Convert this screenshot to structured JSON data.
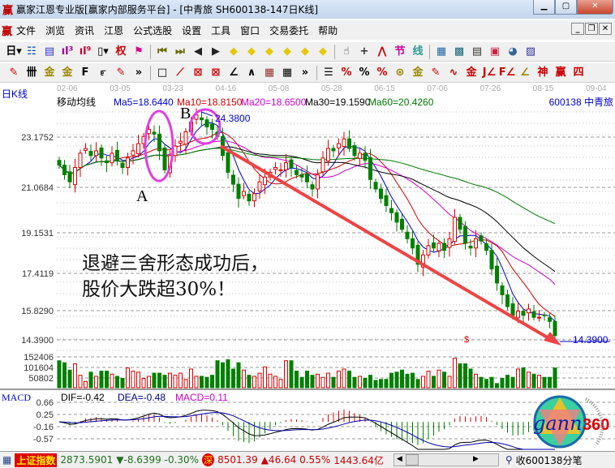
{
  "window": {
    "title": "赢家江恩专业版[赢家内部服务平台] - [中青旅  SH600138-147日K线]",
    "logo": "赢"
  },
  "menu": {
    "logo": "赢",
    "items": [
      "文件",
      "浏览",
      "资讯",
      "江恩",
      "公式选股",
      "设置",
      "工具",
      "窗口",
      "交易委托",
      "帮助"
    ]
  },
  "toolbar1": [
    {
      "name": "period-day-icon",
      "g": "日▾",
      "c": "#000"
    },
    {
      "name": "chart-type-icon",
      "g": "☷",
      "c": "#0044cc"
    },
    {
      "name": "document-icon",
      "g": "▤",
      "c": "#3333cc"
    },
    {
      "name": "indicator-3-icon",
      "g": "ıl³",
      "c": "#990099"
    },
    {
      "name": "indicator-9-icon",
      "g": "ıl⁹",
      "c": "#cc0033"
    },
    {
      "name": "candle-type-icon",
      "g": "▯▾",
      "c": "#000"
    },
    {
      "name": "rights-icon",
      "g": "权",
      "c": "#cc0000"
    },
    {
      "name": "flag-icon",
      "g": "⚑",
      "c": "#e0008a"
    },
    {
      "sep": true
    },
    {
      "name": "first-icon",
      "g": "⏮",
      "c": "#6b6b00"
    },
    {
      "name": "last-icon",
      "g": "⏭",
      "c": "#6b6b00"
    },
    {
      "name": "left-icon",
      "g": "◀",
      "c": "#222"
    },
    {
      "name": "right-icon",
      "g": "▶",
      "c": "#222"
    },
    {
      "name": "zoom-left-icon",
      "g": "◆",
      "c": "#e6c800"
    },
    {
      "name": "zoom-right-icon",
      "g": "◆",
      "c": "#e6c800"
    },
    {
      "name": "zoom-h-icon",
      "g": "◆",
      "c": "#e6c800"
    },
    {
      "name": "zoom-in-icon",
      "g": "◆",
      "c": "#e6c800"
    },
    {
      "name": "zoom-out-icon",
      "g": "◆",
      "c": "#e6c800"
    },
    {
      "name": "zoom-all-icon",
      "g": "◆",
      "c": "#e6c800"
    },
    {
      "sep": true
    },
    {
      "name": "hand-icon",
      "g": "☝",
      "c": "#333"
    },
    {
      "name": "crosshair-icon",
      "g": "+",
      "c": "#333"
    },
    {
      "name": "line-tool-icon",
      "g": "⋀",
      "c": "#cc0000"
    },
    {
      "name": "node-icon",
      "g": "节",
      "c": "#cc0099"
    },
    {
      "name": "segment-icon",
      "g": "线",
      "c": "#339999"
    },
    {
      "sep": true
    },
    {
      "name": "calendar-icon",
      "g": "▦",
      "c": "#2266aa"
    },
    {
      "name": "calculator-icon",
      "g": "▩",
      "c": "#116677"
    },
    {
      "name": "notes-icon",
      "g": "▤",
      "c": "#333"
    },
    {
      "name": "save-icon",
      "g": "▣",
      "c": "#cc2244"
    },
    {
      "name": "network-icon",
      "g": "◕",
      "c": "#336699"
    },
    {
      "name": "print-icon",
      "g": "▨",
      "c": "#333399"
    }
  ],
  "toolbar2": [
    {
      "name": "pen-icon",
      "g": "✎",
      "c": "#cc0000"
    },
    {
      "name": "parallel-icon",
      "g": "卌",
      "c": "#000"
    },
    {
      "name": "gold-line-icon",
      "g": "金",
      "c": "#998800"
    },
    {
      "name": "gold-line2-icon",
      "g": "金",
      "c": "#998800"
    },
    {
      "name": "fib-icon",
      "g": "F",
      "c": "#000"
    },
    {
      "name": "spiral-icon",
      "g": "೯",
      "c": "#000"
    },
    {
      "name": "eraser-icon",
      "g": "✎",
      "c": "#cc0000"
    },
    {
      "name": "more-icon",
      "g": "»",
      "c": "#000"
    },
    {
      "sep": true
    },
    {
      "name": "box-icon",
      "g": "□",
      "c": "#000"
    },
    {
      "name": "fan-icon",
      "g": "⟋",
      "c": "#cc0000"
    },
    {
      "name": "gann-box-icon",
      "g": "⊠",
      "c": "#cc0000"
    },
    {
      "name": "gann-grid-icon",
      "g": "⊠",
      "c": "#cc0000"
    },
    {
      "name": "angle-icon",
      "g": "∠",
      "c": "#000"
    },
    {
      "name": "wave-icon",
      "g": "∧",
      "c": "#000"
    },
    {
      "name": "grid-icon",
      "g": "▦",
      "c": "#993333"
    },
    {
      "name": "grid2-icon",
      "g": "▦",
      "c": "#000"
    },
    {
      "name": "more2-icon",
      "g": "»",
      "c": "#000"
    },
    {
      "sep": true
    },
    {
      "name": "ruler-icon",
      "g": "☰",
      "c": "#000"
    },
    {
      "name": "percent-line-icon",
      "g": "%",
      "c": "#cc0000"
    },
    {
      "name": "percent-icon",
      "g": "%",
      "c": "#000"
    },
    {
      "name": "percent-levels-icon",
      "g": "%",
      "c": "#cc0000"
    },
    {
      "name": "gold-coin-icon",
      "g": "⊛",
      "c": "#998800"
    },
    {
      "name": "gold-levels-icon",
      "g": "金",
      "c": "#998800"
    },
    {
      "name": "marker-icon",
      "g": "✎",
      "c": "#cc0000"
    },
    {
      "name": "sine-icon",
      "g": "∿",
      "c": "#cc0000"
    },
    {
      "name": "gold-bar-icon",
      "g": "金",
      "c": "#cc0000"
    },
    {
      "name": "j-angle-icon",
      "g": "J∠",
      "c": "#cc0000"
    },
    {
      "name": "f-angle-icon",
      "g": "F∠",
      "c": "#cc0000"
    },
    {
      "name": "gold-angle-icon",
      "g": "∠",
      "c": "#998800"
    },
    {
      "name": "god-angle-icon",
      "g": "神",
      "c": "#cc0000"
    },
    {
      "name": "win-angle-icon",
      "g": "赢",
      "c": "#cc0000"
    },
    {
      "name": "four-angle-icon",
      "g": "四",
      "c": "#cc0000"
    }
  ],
  "chart": {
    "period_label": "日K线",
    "indicator_name": "移动均线",
    "ma_labels": [
      {
        "text": "Ma5=18.6440",
        "color": "#0000cc"
      },
      {
        "text": "Ma10=18.8150",
        "color": "#cc0000"
      },
      {
        "text": "Ma20=18.6500",
        "color": "#cc00cc"
      },
      {
        "text": "Ma30=19.1590",
        "color": "#000000"
      },
      {
        "text": "Ma60=20.4260",
        "color": "#007700"
      }
    ],
    "stock_label": "600138  中青旅",
    "dates": [
      "02-06",
      "03-05",
      "03-23",
      "04-16",
      "05-08",
      "05-28",
      "06-15",
      "07-06",
      "07-26",
      "08-15",
      "09-04"
    ],
    "price_ticks": [
      "23.1752",
      "21.0684",
      "19.1531",
      "17.4119",
      "15.8290",
      "14.3900"
    ],
    "volume_ticks": [
      "152406",
      "101604",
      "50802"
    ],
    "macd_label": "MACD",
    "dif": "DIF=-0.42",
    "dea": "DEA=-0.48",
    "macd": "MACD=0.11",
    "macd_ticks": [
      "0.66",
      "0.25",
      "-0.16",
      "-0.57"
    ],
    "high_marker": "24.3800",
    "low_marker": "14.3900",
    "dollar_marker": "$",
    "annot_a": "A",
    "annot_b": "B",
    "annot_line1": "退避三舍形态成功后，",
    "annot_line2": "股价大跌超30%！",
    "colors": {
      "up": "#dd0000",
      "down": "#008000",
      "ellipse": "#e040e0",
      "arrow": "#ee4444"
    }
  },
  "chart_data": {
    "type": "candlestick",
    "closes": [
      22.0,
      21.6,
      21.3,
      21.9,
      22.5,
      22.7,
      22.4,
      22.6,
      22.3,
      22.1,
      22.5,
      22.2,
      21.9,
      22.3,
      22.6,
      22.9,
      23.2,
      23.5,
      23.3,
      22.6,
      21.8,
      22.4,
      22.8,
      23.0,
      23.4,
      23.8,
      24.1,
      23.9,
      23.6,
      23.5,
      23.2,
      22.4,
      21.7,
      21.2,
      20.6,
      20.9,
      20.5,
      20.8,
      21.3,
      21.5,
      21.7,
      21.9,
      21.8,
      22.1,
      21.9,
      21.6,
      21.5,
      21.3,
      21.0,
      21.6,
      22.3,
      22.7,
      22.6,
      22.9,
      23.1,
      22.7,
      22.4,
      22.5,
      22.2,
      21.4,
      21.0,
      20.6,
      20.3,
      20.0,
      19.6,
      19.3,
      18.9,
      18.5,
      17.8,
      18.2,
      18.6,
      18.5,
      18.7,
      18.4,
      18.9,
      19.8,
      19.3,
      18.7,
      18.5,
      18.9,
      18.8,
      18.4,
      17.6,
      17.0,
      16.5,
      16.0,
      15.6,
      15.8,
      15.6,
      15.9,
      15.5,
      15.5,
      15.6,
      15.3,
      14.6
    ],
    "volumes": [
      130000,
      120000,
      85000,
      115000,
      60000,
      30000,
      75000,
      55000,
      80000,
      80000,
      65000,
      55000,
      45000,
      95000,
      80000,
      75000,
      45000,
      55000,
      70000,
      70000,
      60000,
      70000,
      60000,
      70000,
      40000,
      90000,
      55000,
      55000,
      50000,
      60000,
      130000,
      120000,
      135000,
      90000,
      120000,
      85000,
      60000,
      55000,
      70000,
      100000,
      65000,
      55000,
      40000,
      130000,
      130000,
      80000,
      50000,
      80000,
      60000,
      65000,
      50000,
      70000,
      50000,
      80000,
      90000,
      80000,
      50000,
      55000,
      45000,
      60000,
      35000,
      40000,
      40000,
      70000,
      75000,
      85000,
      65000,
      70000,
      40000,
      55000,
      80000,
      55000,
      85000,
      75000,
      55000,
      142000,
      115000,
      115000,
      90000,
      65000,
      50000,
      40000,
      50000,
      20000,
      45000,
      60000,
      50000,
      90000,
      95000,
      75000,
      65000,
      60000,
      50000,
      50000,
      95000
    ],
    "price_ticks": [
      23.1752,
      21.0684,
      19.1531,
      17.4119,
      15.829,
      14.39
    ],
    "volume_ticks": [
      152406,
      101604,
      50802
    ],
    "macd_ticks": [
      0.66,
      0.25,
      -0.16,
      -0.57
    ],
    "ma_periods": [
      5,
      10,
      20,
      30,
      60
    ],
    "x_tick_labels": [
      "02-06",
      "03-05",
      "03-23",
      "04-16",
      "05-08",
      "05-28",
      "06-15",
      "07-06",
      "07-26",
      "08-15",
      "09-04"
    ],
    "grid": true
  },
  "status": {
    "index_name": "上证指数",
    "sh_value": "2873.5901",
    "sh_change": "▼-8.6399 -0.30%",
    "sz_badge": "深",
    "sz_value": "8501.39",
    "sz_change": "▲46.64 0.55%",
    "turnover": "1443.64亿",
    "right_text": "收600138分笔"
  },
  "logo": {
    "text": "gann",
    "num": "360"
  }
}
